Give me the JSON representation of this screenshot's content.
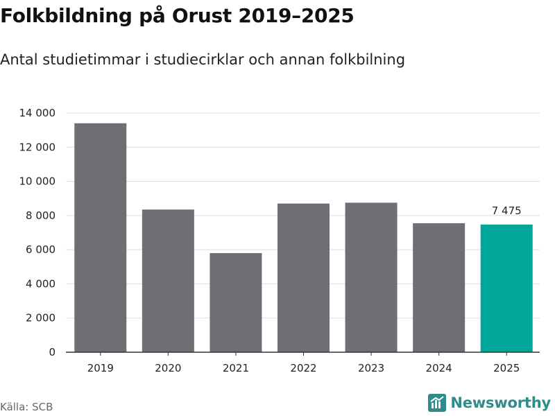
{
  "title": "Folkbildning på Orust 2019–2025",
  "subtitle": "Antal studietimmar i studiecirklar och annan folkbilning",
  "source": "Källa: SCB",
  "brand": {
    "name": "Newsworthy",
    "icon": "newsworthy-logo-icon",
    "color": "#2e8c8a"
  },
  "colors": {
    "bar": "#6e6e74",
    "highlight": "#00a79a",
    "grid": "#dddddd",
    "axis": "#333333",
    "text": "#222222"
  },
  "chart_data": {
    "type": "bar",
    "title": "Folkbildning på Orust 2019–2025",
    "subtitle": "Antal studietimmar i studiecirklar och annan folkbilning",
    "xlabel": "",
    "ylabel": "",
    "categories": [
      "2019",
      "2020",
      "2021",
      "2022",
      "2023",
      "2024",
      "2025"
    ],
    "values": [
      13400,
      8350,
      5800,
      8700,
      8750,
      7550,
      7475
    ],
    "highlight_index": 6,
    "data_labels": [
      {
        "index": 6,
        "text": "7 475"
      }
    ],
    "ylim": [
      0,
      14000
    ],
    "yticks": [
      0,
      2000,
      4000,
      6000,
      8000,
      10000,
      12000,
      14000
    ],
    "ytick_labels": [
      "0",
      "2 000",
      "4 000",
      "6 000",
      "8 000",
      "10 000",
      "12 000",
      "14 000"
    ],
    "grid": true,
    "legend": "none"
  }
}
